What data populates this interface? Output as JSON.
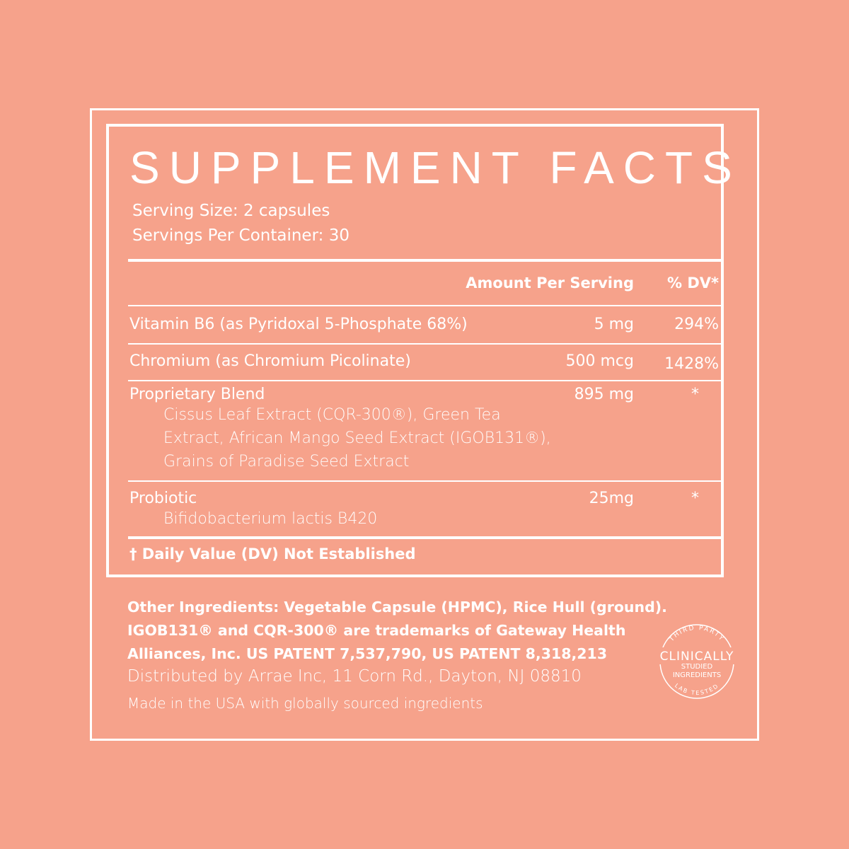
{
  "title": "SUPPLEMENT FACTS",
  "serving_size": "Serving Size: 2 capsules",
  "servings_per_container": "Servings Per Container: 30",
  "table": {
    "header": {
      "amount": "Amount Per Serving",
      "dv": "% DV*"
    },
    "rows": [
      {
        "name": "Vitamin B6 (as Pyridoxal 5-Phosphate 68%)",
        "amount": "5 mg",
        "dv": "294%"
      },
      {
        "name": "Chromium (as Chromium Picolinate)",
        "amount": "500 mcg",
        "dv": "1428%"
      },
      {
        "name": "Proprietary Blend",
        "amount": "895 mg",
        "dv": "*",
        "sub": [
          "Cissus Leaf Extract (CQR-300®), Green Tea",
          "Extract, African Mango Seed Extract (IGOB131®),",
          "Grains of Paradise Seed Extract"
        ]
      },
      {
        "name": "Probiotic",
        "amount": "25mg",
        "dv": "*",
        "sub": [
          "Bifidobacterium lactis B420"
        ]
      }
    ],
    "footnote": "† Daily Value (DV) Not Established"
  },
  "other": {
    "lines": [
      "Other Ingredients: Vegetable Capsule (HPMC), Rice Hull (ground).",
      "IGOB131® and CQR-300® are trademarks of Gateway Health",
      "Alliances, Inc. US PATENT 7,537,790, US PATENT 8,318,213"
    ],
    "distributed": "Distributed by Arrae Inc, 11 Corn Rd., Dayton, NJ 08810",
    "made_in": "Made in the USA with globally sourced ingredients"
  },
  "badge": {
    "top": "THIRD PARTY",
    "main": "CLINICALLY",
    "line2": "STUDIED",
    "line3": "INGREDIENTS",
    "bottom": "LAB TESTED"
  },
  "colors": {
    "background": "#F6A28B",
    "text": "#FFFFFF"
  }
}
